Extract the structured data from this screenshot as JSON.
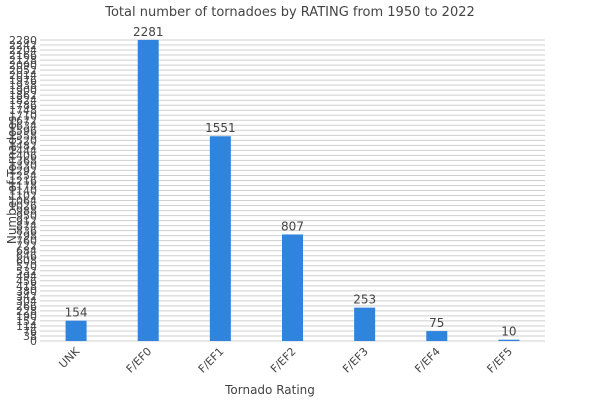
{
  "chart_data": {
    "type": "bar",
    "title": "Total number of tornadoes by RATING from 1950 to 2022",
    "xlabel": "Tornado Rating",
    "ylabel": "Number of Tornadoes",
    "categories": [
      "UNK",
      "F/EF0",
      "F/EF1",
      "F/EF2",
      "F/EF3",
      "F/EF4",
      "F/EF5"
    ],
    "values": [
      154,
      2281,
      1551,
      807,
      253,
      75,
      10
    ],
    "ylim": [
      0,
      2280
    ],
    "ytick_step": 38,
    "grid": true,
    "bar_color": "#2f84de"
  }
}
